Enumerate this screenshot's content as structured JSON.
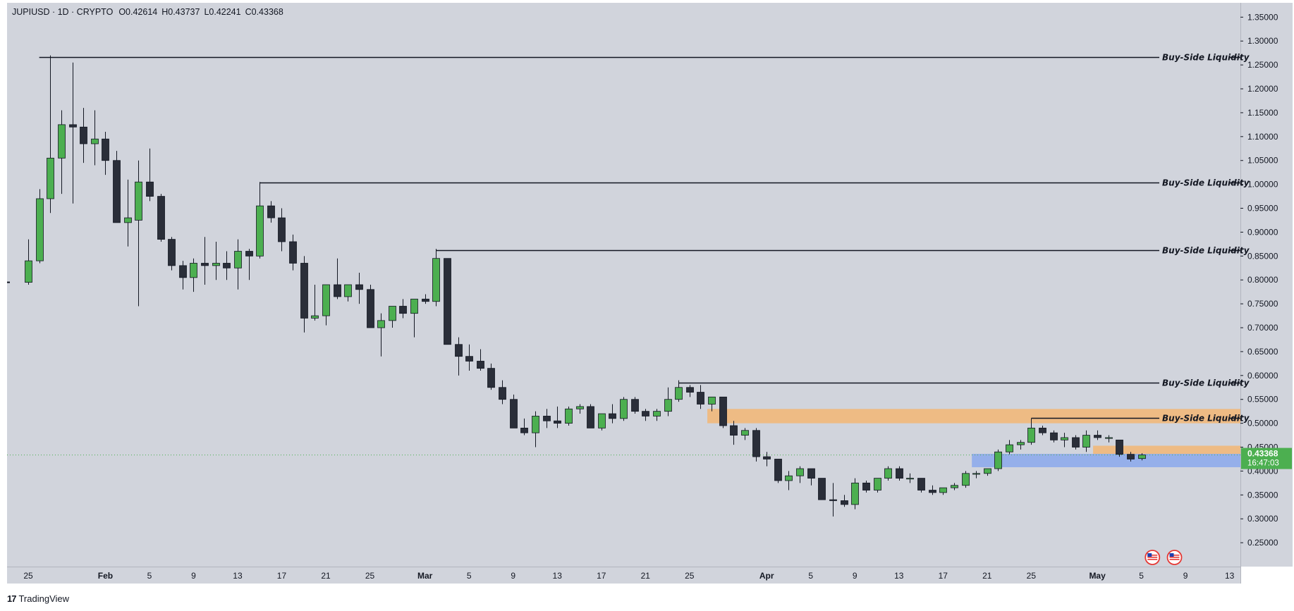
{
  "header": {
    "symbol": "JUPIUSD · 1D · CRYPTO",
    "open": "O0.42614",
    "high": "H0.43737",
    "low": "L0.42241",
    "close": "C0.43368"
  },
  "branding": {
    "logo_icon": "tradingview-logo-icon",
    "text": "TradingView"
  },
  "price_tag": {
    "value": "0.43368",
    "countdown": "16:47:03"
  },
  "colors": {
    "background": "#d1d4dc",
    "up_candle": "#4caf50",
    "down_candle": "#2a2e39",
    "wick": "#131722",
    "liquidity_line": "#131722",
    "supply_zone": "#f0b87c",
    "demand_zone": "#8fabea",
    "price_tag": "#4caf50",
    "current_price_line": "#4caf50"
  },
  "chart_data": {
    "type": "candlestick",
    "symbol": "JUPIUSD",
    "interval": "1D",
    "y_axis": {
      "side": "right",
      "range": [
        0.2,
        1.38
      ],
      "ticks": [
        "0.25000",
        "0.30000",
        "0.35000",
        "0.40000",
        "0.45000",
        "0.50000",
        "0.55000",
        "0.60000",
        "0.65000",
        "0.70000",
        "0.75000",
        "0.80000",
        "0.85000",
        "0.90000",
        "0.95000",
        "1.00000",
        "1.05000",
        "1.10000",
        "1.15000",
        "1.20000",
        "1.25000",
        "1.30000",
        "1.35000"
      ]
    },
    "x_axis": {
      "ticks": [
        {
          "label": "25",
          "day": 0
        },
        {
          "label": "Feb",
          "day": 7
        },
        {
          "label": "5",
          "day": 11
        },
        {
          "label": "9",
          "day": 15
        },
        {
          "label": "13",
          "day": 19
        },
        {
          "label": "17",
          "day": 23
        },
        {
          "label": "21",
          "day": 27
        },
        {
          "label": "25",
          "day": 31
        },
        {
          "label": "Mar",
          "day": 36
        },
        {
          "label": "5",
          "day": 40
        },
        {
          "label": "9",
          "day": 44
        },
        {
          "label": "13",
          "day": 48
        },
        {
          "label": "17",
          "day": 52
        },
        {
          "label": "21",
          "day": 56
        },
        {
          "label": "25",
          "day": 60
        },
        {
          "label": "Apr",
          "day": 67
        },
        {
          "label": "5",
          "day": 71
        },
        {
          "label": "9",
          "day": 75
        },
        {
          "label": "13",
          "day": 79
        },
        {
          "label": "17",
          "day": 83
        },
        {
          "label": "21",
          "day": 87
        },
        {
          "label": "25",
          "day": 91
        },
        {
          "label": "May",
          "day": 97
        },
        {
          "label": "5",
          "day": 101
        },
        {
          "label": "9",
          "day": 105
        },
        {
          "label": "13",
          "day": 109
        }
      ]
    },
    "candles": [
      [
        0.795,
        0.885,
        0.79,
        0.84
      ],
      [
        0.84,
        0.99,
        0.835,
        0.97
      ],
      [
        0.97,
        1.27,
        0.94,
        1.055
      ],
      [
        1.055,
        1.155,
        0.98,
        1.125
      ],
      [
        1.125,
        1.255,
        0.96,
        1.12
      ],
      [
        1.12,
        1.16,
        1.045,
        1.085
      ],
      [
        1.085,
        1.155,
        1.04,
        1.095
      ],
      [
        1.095,
        1.11,
        1.02,
        1.05
      ],
      [
        1.05,
        1.07,
        0.92,
        0.92
      ],
      [
        0.92,
        1.01,
        0.87,
        0.93
      ],
      [
        0.925,
        1.05,
        0.745,
        1.005
      ],
      [
        1.005,
        1.075,
        0.965,
        0.975
      ],
      [
        0.975,
        0.98,
        0.88,
        0.885
      ],
      [
        0.885,
        0.89,
        0.82,
        0.83
      ],
      [
        0.83,
        0.84,
        0.78,
        0.805
      ],
      [
        0.805,
        0.845,
        0.775,
        0.835
      ],
      [
        0.835,
        0.89,
        0.79,
        0.83
      ],
      [
        0.83,
        0.88,
        0.8,
        0.835
      ],
      [
        0.835,
        0.86,
        0.8,
        0.825
      ],
      [
        0.825,
        0.885,
        0.78,
        0.86
      ],
      [
        0.86,
        0.865,
        0.8,
        0.85
      ],
      [
        0.85,
        1.005,
        0.845,
        0.955
      ],
      [
        0.955,
        0.965,
        0.92,
        0.93
      ],
      [
        0.93,
        0.95,
        0.86,
        0.88
      ],
      [
        0.88,
        0.895,
        0.82,
        0.835
      ],
      [
        0.835,
        0.85,
        0.69,
        0.72
      ],
      [
        0.72,
        0.79,
        0.715,
        0.725
      ],
      [
        0.725,
        0.79,
        0.705,
        0.79
      ],
      [
        0.79,
        0.845,
        0.76,
        0.765
      ],
      [
        0.765,
        0.79,
        0.755,
        0.79
      ],
      [
        0.79,
        0.815,
        0.75,
        0.78
      ],
      [
        0.78,
        0.79,
        0.7,
        0.7
      ],
      [
        0.7,
        0.73,
        0.64,
        0.715
      ],
      [
        0.715,
        0.745,
        0.7,
        0.745
      ],
      [
        0.745,
        0.76,
        0.72,
        0.73
      ],
      [
        0.73,
        0.76,
        0.68,
        0.76
      ],
      [
        0.76,
        0.77,
        0.75,
        0.755
      ],
      [
        0.755,
        0.865,
        0.745,
        0.845
      ],
      [
        0.845,
        0.845,
        0.665,
        0.665
      ],
      [
        0.665,
        0.68,
        0.6,
        0.64
      ],
      [
        0.64,
        0.665,
        0.61,
        0.63
      ],
      [
        0.63,
        0.655,
        0.61,
        0.615
      ],
      [
        0.615,
        0.625,
        0.57,
        0.575
      ],
      [
        0.575,
        0.59,
        0.54,
        0.55
      ],
      [
        0.55,
        0.56,
        0.49,
        0.49
      ],
      [
        0.49,
        0.51,
        0.475,
        0.48
      ],
      [
        0.48,
        0.525,
        0.45,
        0.515
      ],
      [
        0.515,
        0.53,
        0.49,
        0.505
      ],
      [
        0.505,
        0.535,
        0.49,
        0.5
      ],
      [
        0.5,
        0.535,
        0.495,
        0.53
      ],
      [
        0.53,
        0.54,
        0.52,
        0.535
      ],
      [
        0.535,
        0.54,
        0.49,
        0.49
      ],
      [
        0.49,
        0.52,
        0.485,
        0.52
      ],
      [
        0.52,
        0.54,
        0.5,
        0.51
      ],
      [
        0.51,
        0.555,
        0.505,
        0.55
      ],
      [
        0.55,
        0.555,
        0.52,
        0.525
      ],
      [
        0.525,
        0.53,
        0.505,
        0.515
      ],
      [
        0.515,
        0.53,
        0.505,
        0.525
      ],
      [
        0.525,
        0.575,
        0.515,
        0.55
      ],
      [
        0.55,
        0.59,
        0.545,
        0.575
      ],
      [
        0.575,
        0.58,
        0.555,
        0.565
      ],
      [
        0.565,
        0.58,
        0.53,
        0.54
      ],
      [
        0.54,
        0.555,
        0.525,
        0.555
      ],
      [
        0.555,
        0.555,
        0.49,
        0.495
      ],
      [
        0.495,
        0.505,
        0.455,
        0.475
      ],
      [
        0.475,
        0.49,
        0.465,
        0.485
      ],
      [
        0.485,
        0.49,
        0.42,
        0.43
      ],
      [
        0.43,
        0.44,
        0.41,
        0.425
      ],
      [
        0.425,
        0.425,
        0.375,
        0.38
      ],
      [
        0.38,
        0.4,
        0.36,
        0.39
      ],
      [
        0.39,
        0.41,
        0.375,
        0.405
      ],
      [
        0.405,
        0.405,
        0.37,
        0.385
      ],
      [
        0.385,
        0.385,
        0.34,
        0.34
      ],
      [
        0.34,
        0.375,
        0.305,
        0.338
      ],
      [
        0.338,
        0.35,
        0.325,
        0.33
      ],
      [
        0.33,
        0.385,
        0.32,
        0.375
      ],
      [
        0.375,
        0.38,
        0.355,
        0.36
      ],
      [
        0.36,
        0.385,
        0.355,
        0.385
      ],
      [
        0.385,
        0.41,
        0.38,
        0.405
      ],
      [
        0.405,
        0.41,
        0.38,
        0.385
      ],
      [
        0.385,
        0.395,
        0.375,
        0.385
      ],
      [
        0.385,
        0.385,
        0.355,
        0.36
      ],
      [
        0.36,
        0.37,
        0.35,
        0.355
      ],
      [
        0.355,
        0.365,
        0.35,
        0.365
      ],
      [
        0.365,
        0.375,
        0.36,
        0.37
      ],
      [
        0.37,
        0.4,
        0.365,
        0.395
      ],
      [
        0.395,
        0.4,
        0.385,
        0.395
      ],
      [
        0.395,
        0.405,
        0.39,
        0.405
      ],
      [
        0.405,
        0.445,
        0.4,
        0.44
      ],
      [
        0.44,
        0.465,
        0.435,
        0.455
      ],
      [
        0.455,
        0.465,
        0.445,
        0.46
      ],
      [
        0.46,
        0.51,
        0.455,
        0.49
      ],
      [
        0.49,
        0.495,
        0.475,
        0.48
      ],
      [
        0.48,
        0.485,
        0.46,
        0.465
      ],
      [
        0.465,
        0.48,
        0.45,
        0.47
      ],
      [
        0.47,
        0.475,
        0.445,
        0.45
      ],
      [
        0.45,
        0.485,
        0.44,
        0.475
      ],
      [
        0.475,
        0.485,
        0.465,
        0.47
      ],
      [
        0.47,
        0.475,
        0.46,
        0.47
      ],
      [
        0.465,
        0.465,
        0.43,
        0.435
      ],
      [
        0.435,
        0.44,
        0.42,
        0.425
      ],
      [
        0.42614,
        0.43737,
        0.42241,
        0.43368
      ]
    ],
    "liquidity_levels": [
      {
        "label": "Buy-Side Liquidity",
        "price": 1.267,
        "start_day": 1
      },
      {
        "label": "Buy-Side Liquidity",
        "price": 1.004,
        "start_day": 21
      },
      {
        "label": "Buy-Side Liquidity",
        "price": 0.863,
        "start_day": 37
      },
      {
        "label": "Buy-Side Liquidity",
        "price": 0.585,
        "start_day": 59
      },
      {
        "label": "Buy-Side Liquidity",
        "price": 0.511,
        "start_day": 91
      }
    ],
    "zones": [
      {
        "kind": "supply",
        "top": 0.53,
        "bottom": 0.5,
        "start_day": 62
      },
      {
        "kind": "supply",
        "top": 0.453,
        "bottom": 0.436,
        "start_day": 97
      },
      {
        "kind": "demand",
        "top": 0.436,
        "bottom": 0.408,
        "start_day": 86
      }
    ],
    "current_price": 0.43368,
    "event_markers": [
      {
        "icon": "us-flag-icon",
        "day": 102
      },
      {
        "icon": "us-flag-icon",
        "day": 104
      }
    ]
  }
}
